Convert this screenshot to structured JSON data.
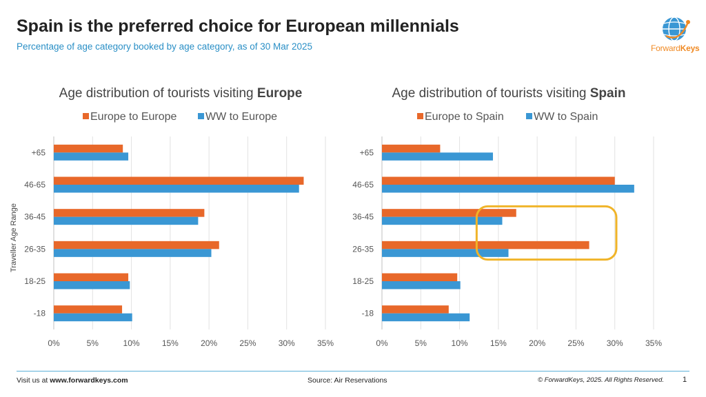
{
  "header": {
    "title": "Spain is the preferred choice for European millennials",
    "subtitle": "Percentage of age category booked by age category, as of 30 Mar 2025"
  },
  "logo": {
    "brand_part1": "Forward",
    "brand_part2": "Keys",
    "icon": "globe-icon"
  },
  "footer": {
    "visit_prefix": "Visit us at ",
    "visit_url": "www.forwardkeys.com",
    "source": "Source: Air Reservations",
    "copyright": "© ForwardKeys, 2025. All Rights Reserved.",
    "page_number": "1"
  },
  "colors": {
    "orange": "#e8682a",
    "blue": "#3a97d4",
    "highlight": "#f0b429",
    "accent": "#2a8fc6"
  },
  "chart_data": [
    {
      "type": "bar",
      "orientation": "horizontal",
      "title_prefix": "Age distribution of tourists visiting ",
      "title_bold": "Europe",
      "ylabel": "Traveller Age Range",
      "categories": [
        "+65",
        "46-65",
        "36-45",
        "26-35",
        "18-25",
        "-18"
      ],
      "series": [
        {
          "name": "Europe to Europe",
          "color": "#e8682a",
          "values": [
            8.9,
            32.2,
            19.4,
            21.3,
            9.6,
            8.8
          ]
        },
        {
          "name": "WW to Europe",
          "color": "#3a97d4",
          "values": [
            9.6,
            31.6,
            18.6,
            20.3,
            9.8,
            10.1
          ]
        }
      ],
      "xlim": [
        0,
        35
      ],
      "xticks": [
        "0%",
        "5%",
        "10%",
        "15%",
        "20%",
        "25%",
        "30%",
        "35%"
      ],
      "legend": "top",
      "grid": true
    },
    {
      "type": "bar",
      "orientation": "horizontal",
      "title_prefix": "Age distribution of tourists visiting ",
      "title_bold": "Spain",
      "categories": [
        "+65",
        "46-65",
        "36-45",
        "26-35",
        "18-25",
        "-18"
      ],
      "series": [
        {
          "name": "Europe to Spain",
          "color": "#e8682a",
          "values": [
            7.5,
            30.0,
            17.3,
            26.7,
            9.7,
            8.6
          ]
        },
        {
          "name": "WW to Spain",
          "color": "#3a97d4",
          "values": [
            14.3,
            32.5,
            15.5,
            16.3,
            10.1,
            11.3
          ]
        }
      ],
      "xlim": [
        0,
        35
      ],
      "xticks": [
        "0%",
        "5%",
        "10%",
        "15%",
        "20%",
        "25%",
        "30%",
        "35%"
      ],
      "legend": "top",
      "grid": true,
      "highlight_categories": [
        "36-45",
        "26-35"
      ]
    }
  ]
}
